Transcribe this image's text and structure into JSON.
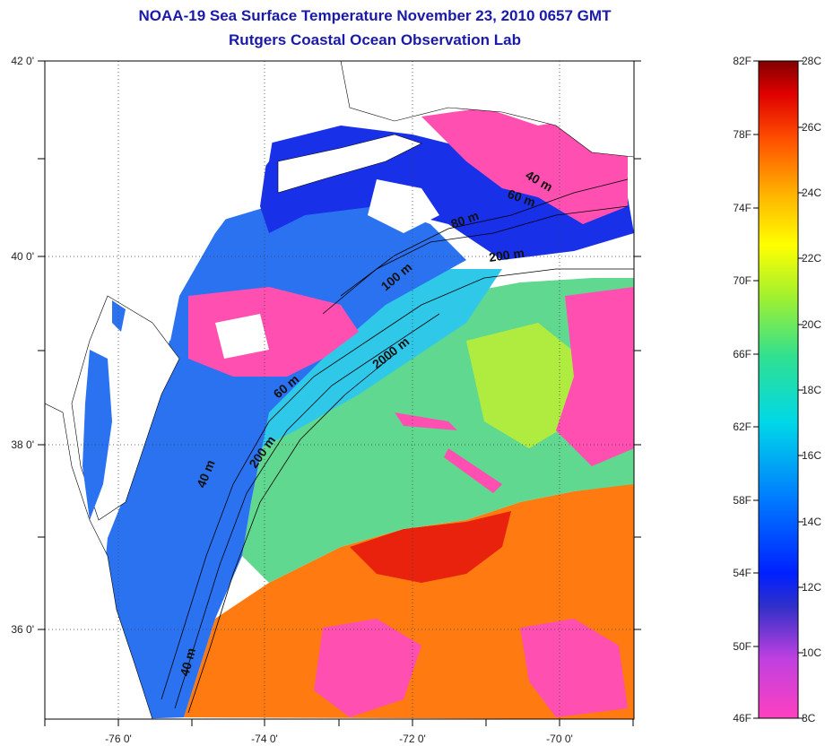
{
  "title_line1": "NOAA-19 Sea Surface Temperature November 23, 2010 0657 GMT",
  "title_line2": "Rutgers Coastal Ocean Observation Lab",
  "map": {
    "lon_ticks": [
      "-76 0'",
      "-74 0'",
      "-72 0'",
      "-70 0'"
    ],
    "lat_ticks": [
      "42 0'",
      "40 0'",
      "38 0'",
      "36 0'"
    ],
    "isobaths": [
      "40 m",
      "60 m",
      "80 m",
      "200 m",
      "100 m",
      "60 m",
      "2000 m",
      "200 m",
      "40 m",
      "40 m"
    ]
  },
  "colorbar": {
    "fahrenheit": [
      "82F",
      "78F",
      "74F",
      "70F",
      "66F",
      "62F",
      "58F",
      "54F",
      "50F",
      "46F"
    ],
    "celsius": [
      "28C",
      "26C",
      "24C",
      "22C",
      "20C",
      "18C",
      "16C",
      "14C",
      "12C",
      "10C",
      "8C"
    ]
  },
  "colors": {
    "title": "#1a1aa8",
    "land": "#ffffff",
    "cloud": "#ff4fb0",
    "cold": "#1830e8",
    "shelf": "#2a6ef0",
    "slope": "#37c8e0",
    "warm_green": "#7fe060",
    "gulfstream": "#ff5a10"
  }
}
